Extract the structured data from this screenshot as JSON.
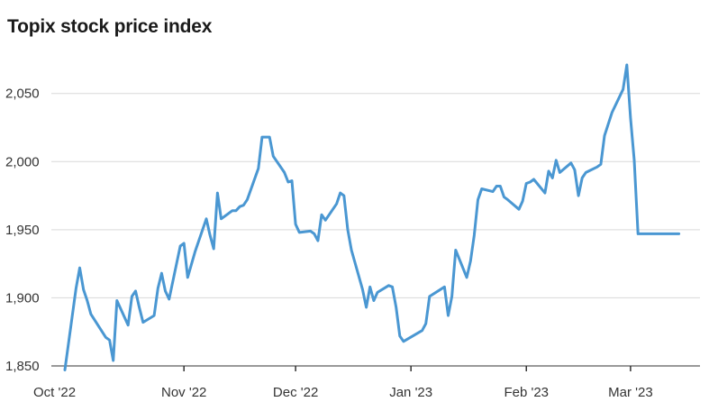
{
  "chart_data": {
    "type": "line",
    "title": "Topix stock price index",
    "xlabel": "",
    "ylabel": "",
    "ylim": [
      1845,
      2080
    ],
    "y_ticks": [
      1850,
      1900,
      1950,
      2000,
      2050
    ],
    "y_tick_labels": [
      "1,850",
      "1,900",
      "1,950",
      "2,000",
      "2,050"
    ],
    "x_tick_labels": [
      "Oct '22",
      "Nov '22",
      "Dec '22",
      "Jan '23",
      "Feb '23",
      "Mar '23"
    ],
    "x_tick_dates": [
      "2022-10-01",
      "2022-11-01",
      "2022-12-01",
      "2023-01-01",
      "2023-02-01",
      "2023-03-01"
    ],
    "x_range": [
      "2022-09-30",
      "2023-03-17"
    ],
    "grid": "horizontal",
    "legend": "none",
    "series": [
      {
        "color": "#4a97d2",
        "x": [
          "2022-09-30",
          "2022-10-03",
          "2022-10-04",
          "2022-10-05",
          "2022-10-06",
          "2022-10-07",
          "2022-10-11",
          "2022-10-12",
          "2022-10-13",
          "2022-10-14",
          "2022-10-17",
          "2022-10-18",
          "2022-10-19",
          "2022-10-20",
          "2022-10-21",
          "2022-10-24",
          "2022-10-25",
          "2022-10-26",
          "2022-10-27",
          "2022-10-28",
          "2022-10-31",
          "2022-11-01",
          "2022-11-02",
          "2022-11-04",
          "2022-11-07",
          "2022-11-08",
          "2022-11-09",
          "2022-11-10",
          "2022-11-11",
          "2022-11-14",
          "2022-11-15",
          "2022-11-16",
          "2022-11-17",
          "2022-11-18",
          "2022-11-21",
          "2022-11-22",
          "2022-11-24",
          "2022-11-25",
          "2022-11-28",
          "2022-11-29",
          "2022-11-30",
          "2022-12-01",
          "2022-12-02",
          "2022-12-05",
          "2022-12-06",
          "2022-12-07",
          "2022-12-08",
          "2022-12-09",
          "2022-12-12",
          "2022-12-13",
          "2022-12-14",
          "2022-12-15",
          "2022-12-16",
          "2022-12-19",
          "2022-12-20",
          "2022-12-21",
          "2022-12-22",
          "2022-12-23",
          "2022-12-26",
          "2022-12-27",
          "2022-12-28",
          "2022-12-29",
          "2022-12-30",
          "2023-01-04",
          "2023-01-05",
          "2023-01-06",
          "2023-01-10",
          "2023-01-11",
          "2023-01-12",
          "2023-01-13",
          "2023-01-16",
          "2023-01-17",
          "2023-01-18",
          "2023-01-19",
          "2023-01-20",
          "2023-01-23",
          "2023-01-24",
          "2023-01-25",
          "2023-01-26",
          "2023-01-27",
          "2023-01-30",
          "2023-01-31",
          "2023-02-01",
          "2023-02-02",
          "2023-02-03",
          "2023-02-06",
          "2023-02-07",
          "2023-02-08",
          "2023-02-09",
          "2023-02-10",
          "2023-02-13",
          "2023-02-14",
          "2023-02-15",
          "2023-02-16",
          "2023-02-17",
          "2023-02-20",
          "2023-02-21",
          "2023-02-22",
          "2023-02-24",
          "2023-02-27",
          "2023-02-28",
          "2023-03-01",
          "2023-03-02",
          "2023-03-03",
          "2023-03-06",
          "2023-03-07",
          "2023-03-08",
          "2023-03-09",
          "2023-03-10",
          "2023-03-13",
          "2023-03-14"
        ],
        "y": [
          1847,
          1907,
          1922,
          1906,
          1898,
          1888,
          1871,
          1869,
          1854,
          1898,
          1880,
          1901,
          1905,
          1893,
          1882,
          1887,
          1907,
          1918,
          1905,
          1899,
          1938,
          1940,
          1915,
          1934,
          1958,
          1946,
          1936,
          1977,
          1958,
          1964,
          1964,
          1967,
          1968,
          1972,
          1995,
          2018,
          2018,
          2004,
          1992,
          1985,
          1986,
          1954,
          1948,
          1949,
          1947,
          1942,
          1961,
          1957,
          1969,
          1977,
          1975,
          1950,
          1935,
          1906,
          1893,
          1908,
          1898,
          1904,
          1909,
          1908,
          1893,
          1872,
          1868,
          1876,
          1881,
          1901,
          1908,
          1887,
          1901,
          1935,
          1915,
          1927,
          1946,
          1972,
          1980,
          1978,
          1982,
          1982,
          1974,
          1972,
          1965,
          1971,
          1984,
          1985,
          1987,
          1977,
          1993,
          1988,
          2001,
          1992,
          1999,
          1994,
          1975,
          1988,
          1992,
          1996,
          1998,
          2019,
          2036,
          2053,
          2071,
          2032,
          2001,
          1947,
          1947,
          1947,
          1947,
          1947,
          1947,
          1947,
          1947
        ]
      }
    ]
  }
}
